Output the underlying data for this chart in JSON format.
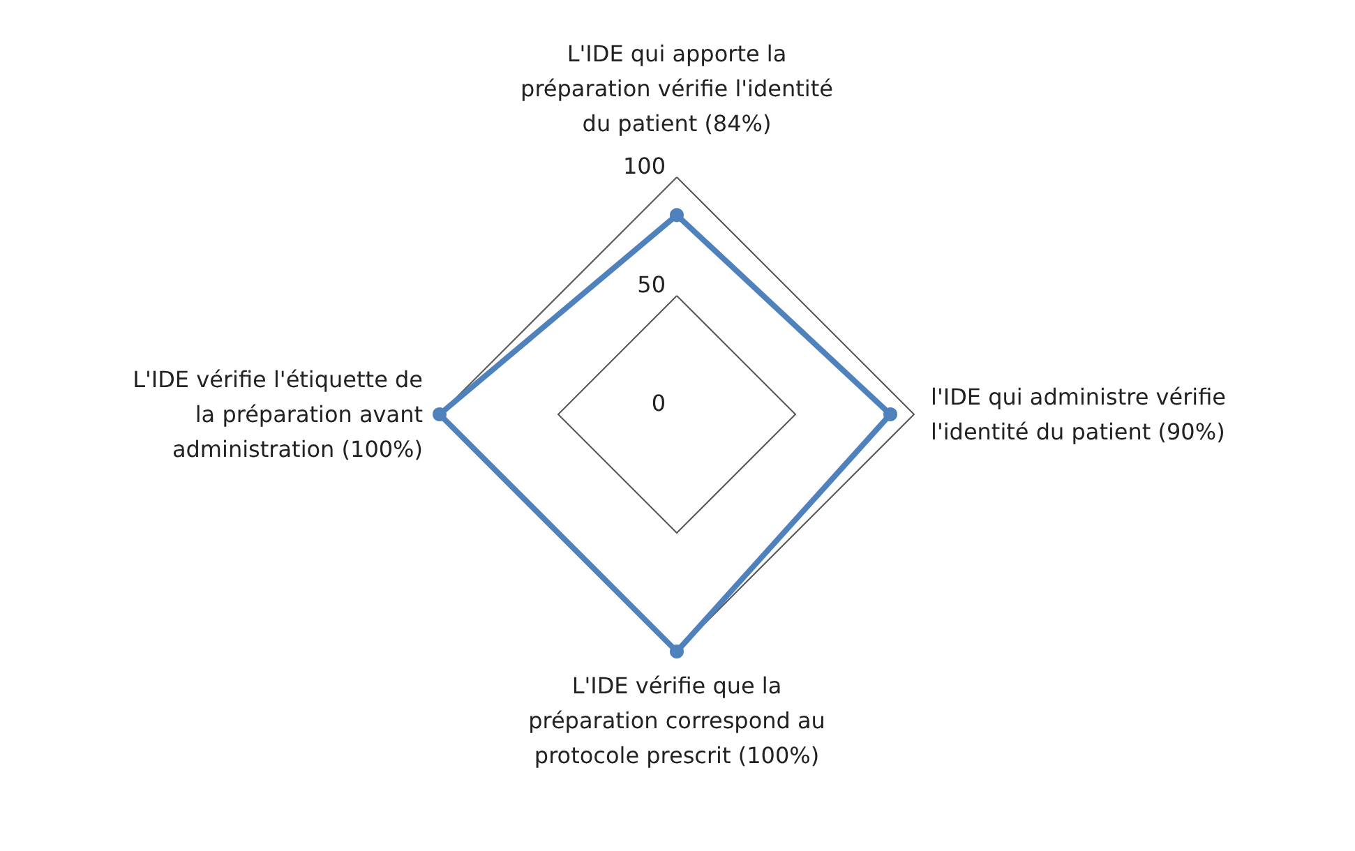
{
  "chart_data": {
    "type": "radar",
    "categories": [
      "L'IDE qui apporte la préparation vérifie l'identité du patient (84%)",
      "l'IDE qui administre vérifie l'identité du patient (90%)",
      "L'IDE vérifie que la préparation correspond au protocole prescrit (100%)",
      "L'IDE vérifie l'étiquette de la préparation avant administration (100%)"
    ],
    "series": [
      {
        "color": "#4f81bd",
        "values": [
          84,
          90,
          100,
          100
        ]
      }
    ],
    "ylim": [
      0,
      100
    ],
    "yticks": [
      0,
      50,
      100
    ],
    "marker": "circle"
  }
}
